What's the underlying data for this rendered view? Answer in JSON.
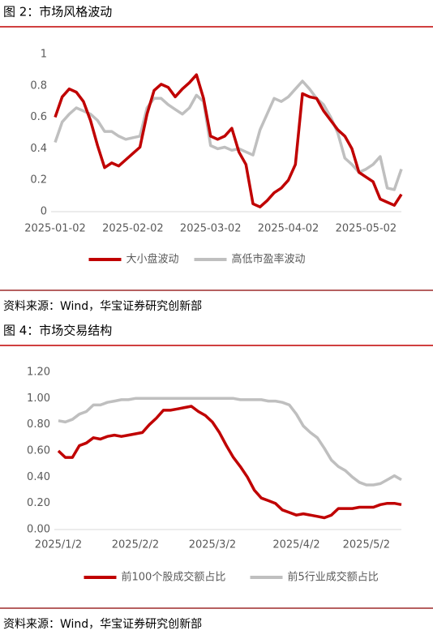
{
  "chart_data": [
    {
      "type": "line",
      "title": "图 2：市场风格波动",
      "source": "资料来源：Wind，华宝证券研究创新部",
      "categories": [
        "2025-01-02",
        null,
        null,
        null,
        null,
        null,
        null,
        null,
        null,
        null,
        null,
        "2025-02-02",
        null,
        null,
        null,
        null,
        null,
        null,
        null,
        null,
        null,
        null,
        "2025-03-02",
        null,
        null,
        null,
        null,
        null,
        null,
        null,
        null,
        null,
        null,
        "2025-04-02",
        null,
        null,
        null,
        null,
        null,
        null,
        null,
        null,
        null,
        null,
        "2025-05-02",
        null,
        null,
        null,
        null,
        null
      ],
      "series": [
        {
          "name": "大小盘波动",
          "color": "#c00000",
          "values": [
            0.6,
            0.73,
            0.78,
            0.76,
            0.7,
            0.58,
            0.42,
            0.28,
            0.31,
            0.29,
            0.33,
            0.37,
            0.41,
            0.62,
            0.77,
            0.81,
            0.79,
            0.73,
            0.78,
            0.82,
            0.87,
            0.72,
            0.48,
            0.46,
            0.48,
            0.53,
            0.38,
            0.3,
            0.05,
            0.03,
            0.07,
            0.12,
            0.15,
            0.2,
            0.3,
            0.75,
            0.73,
            0.72,
            0.64,
            0.58,
            0.52,
            0.48,
            0.4,
            0.25,
            0.22,
            0.19,
            0.08,
            0.06,
            0.04,
            0.11
          ]
        },
        {
          "name": "高低市盈率波动",
          "color": "#bfbfbf",
          "values": [
            0.44,
            0.57,
            0.62,
            0.66,
            0.64,
            0.62,
            0.58,
            0.51,
            0.51,
            0.48,
            0.46,
            0.47,
            0.48,
            0.66,
            0.72,
            0.72,
            0.68,
            0.65,
            0.62,
            0.66,
            0.74,
            0.7,
            0.42,
            0.4,
            0.41,
            0.39,
            0.4,
            0.38,
            0.36,
            0.52,
            0.62,
            0.72,
            0.7,
            0.73,
            0.78,
            0.83,
            0.78,
            0.72,
            0.68,
            0.6,
            0.5,
            0.34,
            0.3,
            0.25,
            0.27,
            0.3,
            0.35,
            0.15,
            0.14,
            0.27
          ]
        }
      ],
      "ylim": [
        0,
        1
      ],
      "yticks": [
        0,
        0.2,
        0.4,
        0.6,
        0.8,
        1
      ],
      "legend": "bottom"
    },
    {
      "type": "line",
      "title": "图 4：市场交易结构",
      "source": "资料来源：Wind，华宝证券研究创新部",
      "categories": [
        "2025/1/2",
        null,
        null,
        null,
        null,
        null,
        null,
        null,
        null,
        null,
        null,
        "2025/2/2",
        null,
        null,
        null,
        null,
        null,
        null,
        null,
        null,
        null,
        null,
        "2025/3/2",
        null,
        null,
        null,
        null,
        null,
        null,
        null,
        null,
        null,
        null,
        null,
        "2025/4/2",
        null,
        null,
        null,
        null,
        null,
        null,
        null,
        null,
        null,
        "2025/5/2",
        null,
        null,
        null,
        null,
        null
      ],
      "series": [
        {
          "name": "前100个股成交额占比",
          "color": "#c00000",
          "values": [
            0.6,
            0.55,
            0.55,
            0.64,
            0.66,
            0.7,
            0.69,
            0.71,
            0.72,
            0.71,
            0.72,
            0.73,
            0.74,
            0.8,
            0.85,
            0.91,
            0.91,
            0.92,
            0.93,
            0.94,
            0.9,
            0.87,
            0.82,
            0.74,
            0.64,
            0.55,
            0.48,
            0.4,
            0.3,
            0.24,
            0.22,
            0.2,
            0.15,
            0.13,
            0.11,
            0.12,
            0.11,
            0.1,
            0.09,
            0.11,
            0.16,
            0.16,
            0.16,
            0.17,
            0.17,
            0.17,
            0.19,
            0.2,
            0.2,
            0.19
          ]
        },
        {
          "name": "前5行业成交额占比",
          "color": "#bfbfbf",
          "values": [
            0.83,
            0.82,
            0.84,
            0.88,
            0.9,
            0.95,
            0.95,
            0.97,
            0.98,
            0.99,
            0.99,
            1.0,
            1.0,
            1.0,
            1.0,
            1.0,
            1.0,
            1.0,
            1.0,
            1.0,
            1.0,
            1.0,
            1.0,
            1.0,
            1.0,
            1.0,
            0.99,
            0.99,
            0.99,
            0.99,
            0.98,
            0.98,
            0.97,
            0.95,
            0.88,
            0.79,
            0.74,
            0.7,
            0.62,
            0.53,
            0.48,
            0.45,
            0.4,
            0.36,
            0.34,
            0.34,
            0.35,
            0.38,
            0.41,
            0.38
          ]
        }
      ],
      "ylim": [
        0,
        1.2
      ],
      "yticks": [
        {
          "value": 0,
          "label": "0.00"
        },
        {
          "value": 0.2,
          "label": "0.20"
        },
        {
          "value": 0.4,
          "label": "0.40"
        },
        {
          "value": 0.6,
          "label": "0.60"
        },
        {
          "value": 0.8,
          "label": "0.80"
        },
        {
          "value": 1,
          "label": "1.00"
        },
        {
          "value": 1.2,
          "label": "1.20"
        }
      ],
      "legend": "bottom"
    }
  ]
}
